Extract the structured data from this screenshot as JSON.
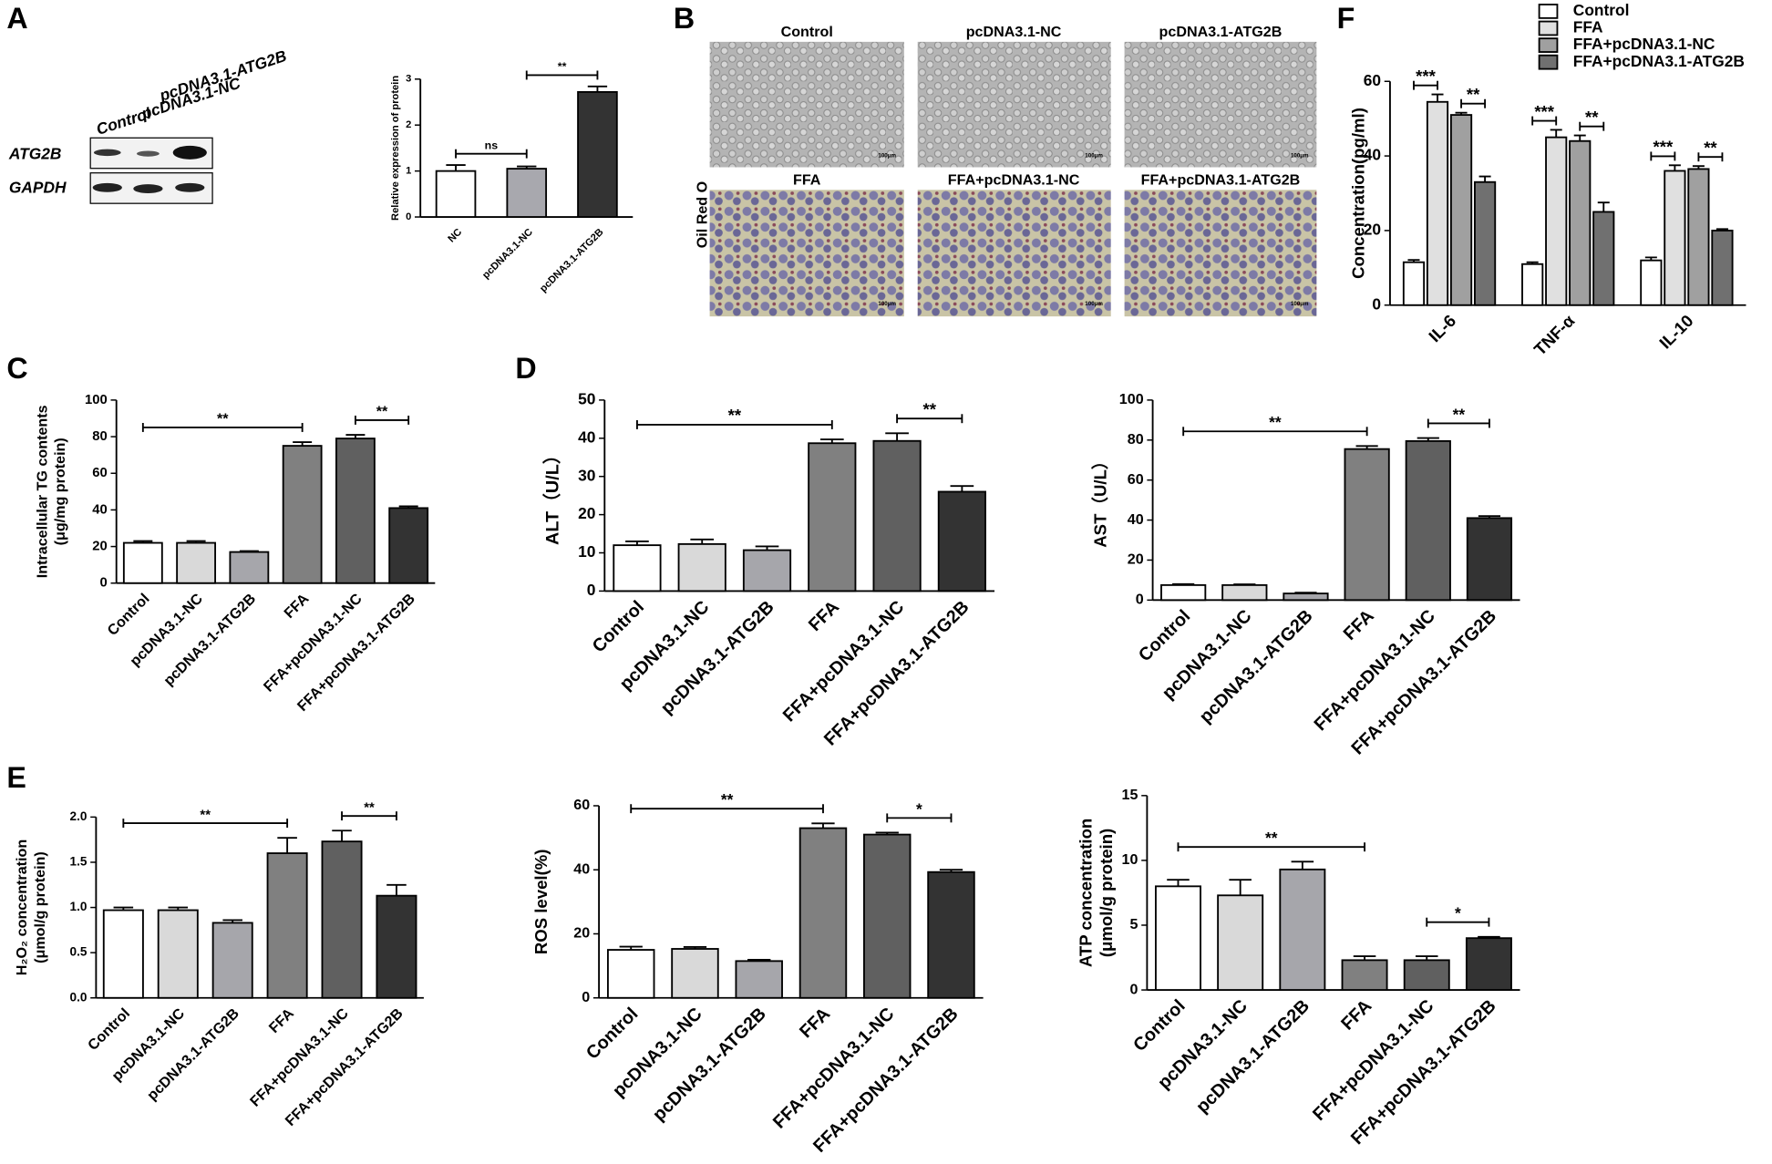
{
  "panels": [
    "A",
    "B",
    "C",
    "D",
    "E",
    "F"
  ],
  "western_blot": {
    "lanes": [
      "Control",
      "pcDNA3.1-NC",
      "pcDNA3.1-ATG2B"
    ],
    "bands": [
      "ATG2B",
      "GAPDH"
    ]
  },
  "micrographs": {
    "stain": "Oil Red O",
    "labels": [
      "Control",
      "pcDNA3.1-NC",
      "pcDNA3.1-ATG2B",
      "FFA",
      "FFA+pcDNA3.1-NC",
      "FFA+pcDNA3.1-ATG2B"
    ],
    "scale_bar": "100μm"
  },
  "chart_data": [
    {
      "type": "bar",
      "ylabel": "Relative expression of protein",
      "categories": [
        "NC",
        "pcDNA3.1-NC",
        "pcDNA3.1-ATG2B"
      ],
      "values": [
        1.0,
        1.05,
        2.72
      ],
      "errors": [
        0.13,
        0.05,
        0.12
      ],
      "colors": [
        "#ffffff",
        "#a8a8ae",
        "#333333"
      ],
      "ylim": [
        0,
        3
      ],
      "yticks": [
        0,
        1,
        2,
        3
      ],
      "significance": [
        {
          "label": "ns",
          "between": [
            "NC",
            "pcDNA3.1-NC"
          ]
        },
        {
          "label": "**",
          "between": [
            "pcDNA3.1-NC",
            "pcDNA3.1-ATG2B"
          ]
        }
      ]
    },
    {
      "type": "bar",
      "ylabel": [
        "Intracellular TG contents",
        "(μg/mg protein)"
      ],
      "categories": [
        "Control",
        "pcDNA3.1-NC",
        "pcDNA3.1-ATG2B",
        "FFA",
        "FFA+pcDNA3.1-NC",
        "FFA+pcDNA3.1-ATG2B"
      ],
      "values": [
        22,
        22,
        17,
        75,
        79,
        41
      ],
      "errors": [
        1,
        1,
        0.5,
        2,
        2,
        1
      ],
      "colors": [
        "#ffffff",
        "#d9d9d9",
        "#a6a6ab",
        "#808080",
        "#606060",
        "#333333"
      ],
      "ylim": [
        0,
        100
      ],
      "yticks": [
        0,
        20,
        40,
        60,
        80,
        100
      ],
      "significance": [
        {
          "label": "**",
          "between": [
            "Control",
            "FFA"
          ]
        },
        {
          "label": "**",
          "between": [
            "FFA+pcDNA3.1-NC",
            "FFA+pcDNA3.1-ATG2B"
          ]
        }
      ]
    },
    {
      "type": "bar",
      "ylabel": "ALT（U/L）",
      "categories": [
        "Control",
        "pcDNA3.1-NC",
        "pcDNA3.1-ATG2B",
        "FFA",
        "FFA+pcDNA3.1-NC",
        "FFA+pcDNA3.1-ATG2B"
      ],
      "values": [
        12,
        12.3,
        10.7,
        38.7,
        39.3,
        26
      ],
      "errors": [
        1,
        1.2,
        1,
        1,
        2,
        1.5
      ],
      "colors": [
        "#ffffff",
        "#d9d9d9",
        "#a6a6ab",
        "#808080",
        "#606060",
        "#333333"
      ],
      "ylim": [
        0,
        50
      ],
      "yticks": [
        0,
        10,
        20,
        30,
        40,
        50
      ],
      "significance": [
        {
          "label": "**",
          "between": [
            "Control",
            "FFA"
          ]
        },
        {
          "label": "**",
          "between": [
            "FFA+pcDNA3.1-NC",
            "FFA+pcDNA3.1-ATG2B"
          ]
        }
      ]
    },
    {
      "type": "bar",
      "ylabel": "AST（U/L）",
      "categories": [
        "Control",
        "pcDNA3.1-NC",
        "pcDNA3.1-ATG2B",
        "FFA",
        "FFA+pcDNA3.1-NC",
        "FFA+pcDNA3.1-ATG2B"
      ],
      "values": [
        7.5,
        7.5,
        3.3,
        75.5,
        79.5,
        41
      ],
      "errors": [
        0.5,
        0.4,
        0.4,
        1.5,
        1.5,
        1
      ],
      "colors": [
        "#ffffff",
        "#d9d9d9",
        "#a6a6ab",
        "#808080",
        "#606060",
        "#333333"
      ],
      "ylim": [
        0,
        100
      ],
      "yticks": [
        0,
        20,
        40,
        60,
        80,
        100
      ],
      "significance": [
        {
          "label": "**",
          "between": [
            "Control",
            "FFA"
          ]
        },
        {
          "label": "**",
          "between": [
            "FFA+pcDNA3.1-NC",
            "FFA+pcDNA3.1-ATG2B"
          ]
        }
      ]
    },
    {
      "type": "bar",
      "ylabel": [
        "H₂O₂ concentration",
        "(μmol/g protein)"
      ],
      "categories": [
        "Control",
        "pcDNA3.1-NC",
        "pcDNA3.1-ATG2B",
        "FFA",
        "FFA+pcDNA3.1-NC",
        "FFA+pcDNA3.1-ATG2B"
      ],
      "values": [
        0.97,
        0.97,
        0.83,
        1.6,
        1.73,
        1.13
      ],
      "errors": [
        0.03,
        0.03,
        0.03,
        0.17,
        0.12,
        0.12
      ],
      "colors": [
        "#ffffff",
        "#d9d9d9",
        "#a6a6ab",
        "#808080",
        "#606060",
        "#333333"
      ],
      "ylim": [
        0,
        2
      ],
      "yticks": [
        {
          "value": 0,
          "label": "0.0"
        },
        0.5,
        {
          "value": 1,
          "label": "1.0"
        },
        1.5,
        {
          "value": 2,
          "label": "2.0"
        }
      ],
      "significance": [
        {
          "label": "**",
          "between": [
            "Control",
            "FFA"
          ]
        },
        {
          "label": "**",
          "between": [
            "FFA+pcDNA3.1-NC",
            "FFA+pcDNA3.1-ATG2B"
          ]
        }
      ]
    },
    {
      "type": "bar",
      "ylabel": "ROS level(%)",
      "categories": [
        "Control",
        "pcDNA3.1-NC",
        "pcDNA3.1-ATG2B",
        "FFA",
        "FFA+pcDNA3.1-NC",
        "FFA+pcDNA3.1-ATG2B"
      ],
      "values": [
        15,
        15.3,
        11.5,
        53,
        51,
        39.3
      ],
      "errors": [
        1,
        0.6,
        0.4,
        1.5,
        0.6,
        0.7
      ],
      "colors": [
        "#ffffff",
        "#d9d9d9",
        "#a6a6ab",
        "#808080",
        "#606060",
        "#333333"
      ],
      "ylim": [
        0,
        60
      ],
      "yticks": [
        0,
        20,
        40,
        60
      ],
      "significance": [
        {
          "label": "**",
          "between": [
            "Control",
            "FFA"
          ]
        },
        {
          "label": "*",
          "between": [
            "FFA+pcDNA3.1-NC",
            "FFA+pcDNA3.1-ATG2B"
          ]
        }
      ]
    },
    {
      "type": "bar",
      "ylabel": [
        "ATP concentration",
        "(μmol/g protein)"
      ],
      "categories": [
        "Control",
        "pcDNA3.1-NC",
        "pcDNA3.1-ATG2B",
        "FFA",
        "FFA+pcDNA3.1-NC",
        "FFA+pcDNA3.1-ATG2B"
      ],
      "values": [
        8,
        7.3,
        9.3,
        2.3,
        2.3,
        4
      ],
      "errors": [
        0.5,
        1.2,
        0.6,
        0.3,
        0.3,
        0.1
      ],
      "colors": [
        "#ffffff",
        "#d9d9d9",
        "#a6a6ab",
        "#808080",
        "#606060",
        "#333333"
      ],
      "ylim": [
        0,
        15
      ],
      "yticks": [
        0,
        5,
        10,
        15
      ],
      "significance": [
        {
          "label": "**",
          "between": [
            "Control",
            "FFA"
          ]
        },
        {
          "label": "*",
          "between": [
            "FFA+pcDNA3.1-NC",
            "FFA+pcDNA3.1-ATG2B"
          ]
        }
      ]
    },
    {
      "type": "grouped_bar",
      "ylabel": "Concentration(pg/ml)",
      "categories": [
        "IL-6",
        "TNF-α",
        "IL-10"
      ],
      "series": [
        {
          "name": "Control",
          "color": "#ffffff",
          "values": [
            11.5,
            11,
            12
          ],
          "errors": [
            0.6,
            0.5,
            0.8
          ]
        },
        {
          "name": "FFA",
          "color": "#e0e0e0",
          "values": [
            54.5,
            45,
            36
          ],
          "errors": [
            2,
            2,
            1.5
          ]
        },
        {
          "name": "FFA+pcDNA3.1-NC",
          "color": "#a0a0a0",
          "values": [
            51,
            44,
            36.5
          ],
          "errors": [
            0.6,
            1.5,
            0.8
          ]
        },
        {
          "name": "FFA+pcDNA3.1-ATG2B",
          "color": "#707070",
          "values": [
            33,
            25,
            20
          ],
          "errors": [
            1.5,
            2.5,
            0.4
          ]
        }
      ],
      "ylim": [
        0,
        60
      ],
      "yticks": [
        0,
        20,
        40,
        60
      ],
      "significance": [
        {
          "label": "***",
          "between": [
            "Control",
            "FFA"
          ]
        },
        {
          "label": "**",
          "between": [
            "FFA+pcDNA3.1-NC",
            "FFA+pcDNA3.1-ATG2B"
          ]
        }
      ]
    }
  ]
}
